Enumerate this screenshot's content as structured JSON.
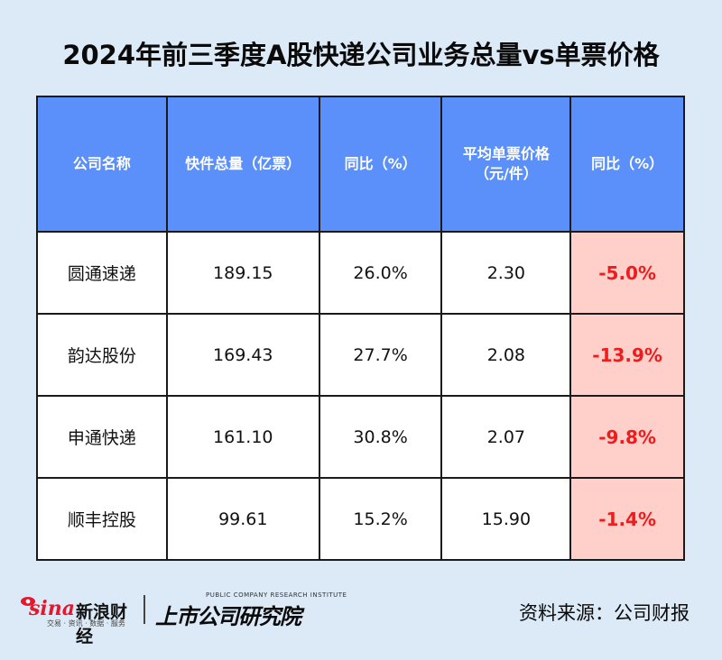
{
  "title": "2024年前三季度A股快递公司业务总量vs单票价格",
  "table": {
    "headers": [
      "公司名称",
      "快件总量（亿票）",
      "同比（%）",
      "平均单票价格\n（元/件）",
      "同比（%）"
    ],
    "rows": [
      {
        "company": "圆通速递",
        "volume": "189.15",
        "volume_yoy": "26.0%",
        "price": "2.30",
        "price_yoy": "-5.0%"
      },
      {
        "company": "韵达股份",
        "volume": "169.43",
        "volume_yoy": "27.7%",
        "price": "2.08",
        "price_yoy": "-13.9%"
      },
      {
        "company": "申通快递",
        "volume": "161.10",
        "volume_yoy": "30.8%",
        "price": "2.07",
        "price_yoy": "-9.8%"
      },
      {
        "company": "顺丰控股",
        "volume": "99.61",
        "volume_yoy": "15.2%",
        "price": "15.90",
        "price_yoy": "-1.4%"
      }
    ]
  },
  "footer": {
    "sina_wordmark": "sina",
    "sina_name": "新浪财经",
    "sina_tagline": "交易 · 资讯 · 数据 · 服务",
    "institute_en": "PUBLIC COMPANY RESEARCH INSTITUTE",
    "institute_cn": "上市公司研究院",
    "source": "资料来源：公司财报"
  },
  "colors": {
    "background": "#dce9f6",
    "header_bg": "#5b8ff9",
    "negative_bg": "#ffcfca",
    "negative_text": "#ee1c1c"
  }
}
